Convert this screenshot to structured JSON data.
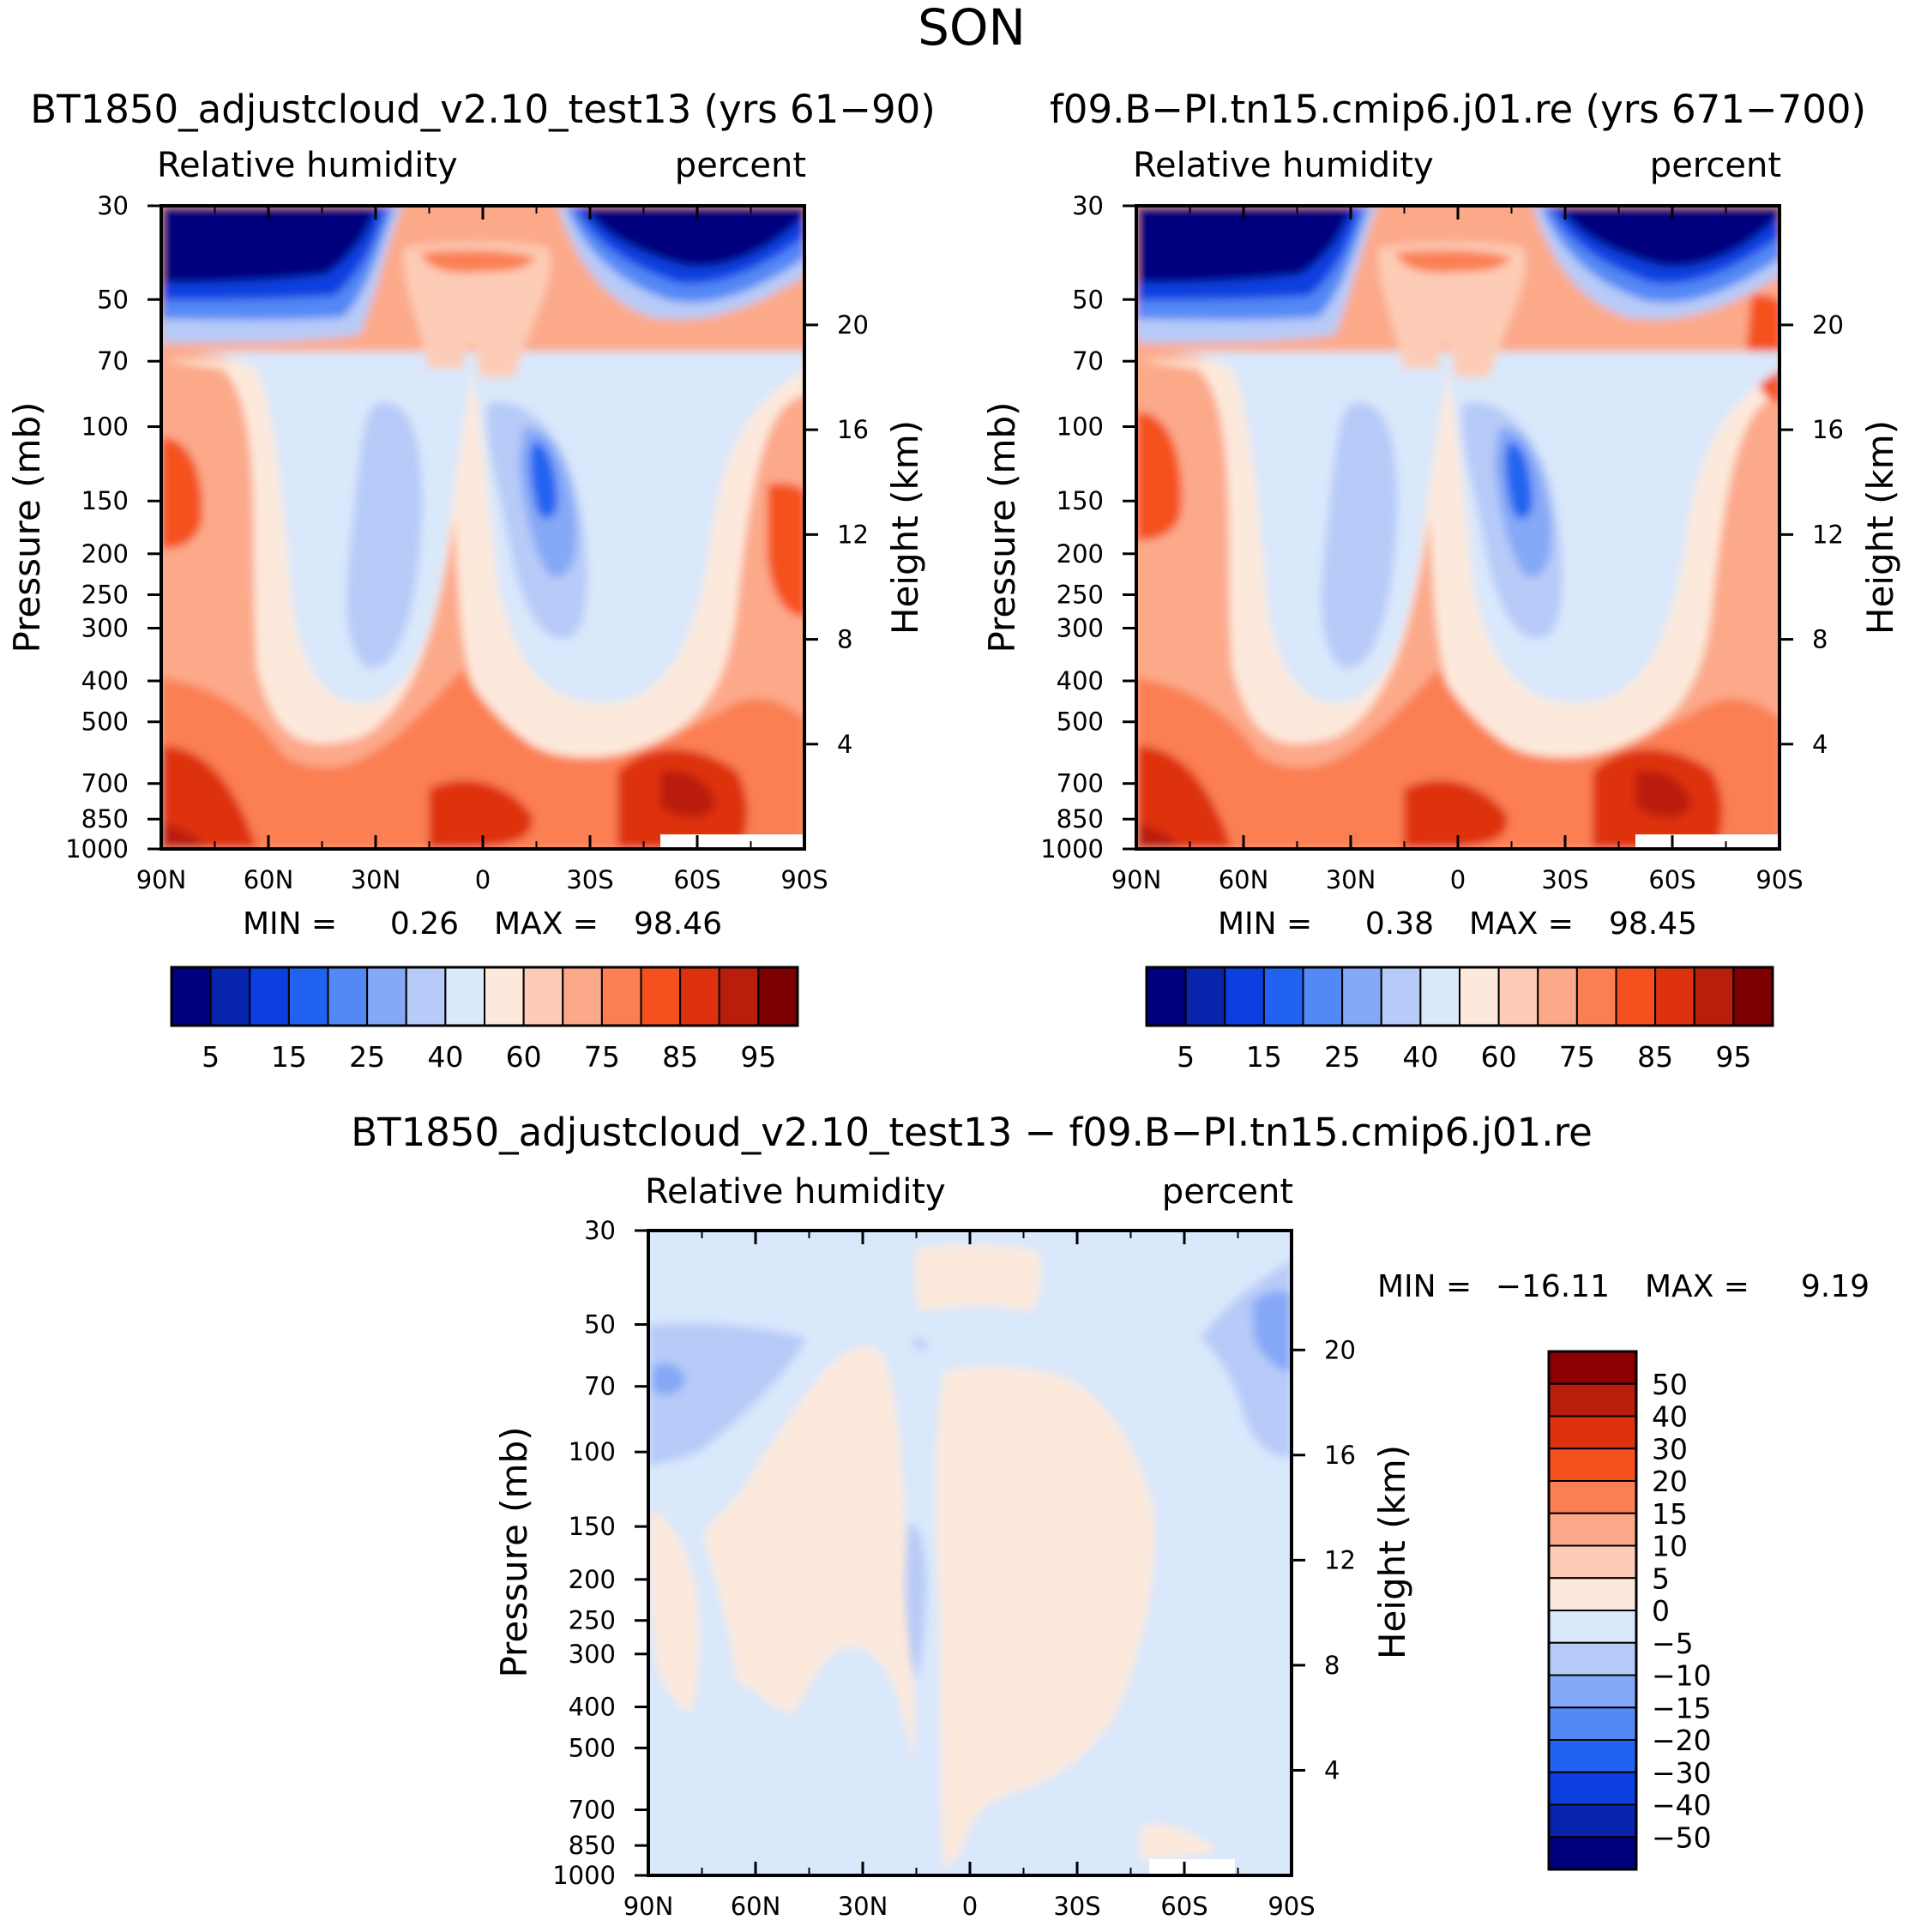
{
  "page_title": "SON",
  "colors": {
    "seq": [
      "#00007f",
      "#0824ad",
      "#0c3fe0",
      "#2163f0",
      "#5388f5",
      "#85a8f7",
      "#b7cbf8",
      "#d9e8fb",
      "#fde9dc",
      "#fdccb6",
      "#fca98a",
      "#fb7f53",
      "#f5511f",
      "#de320f",
      "#b91d0c",
      "#7d0000"
    ],
    "div": [
      "#00007f",
      "#0824ad",
      "#0c3fe0",
      "#2163f0",
      "#5388f5",
      "#85a8f7",
      "#b7cbf8",
      "#d9e8fb",
      "#fde9dc",
      "#fdccb6",
      "#fca98a",
      "#fb7f53",
      "#f5511f",
      "#de320f",
      "#b91d0c",
      "#8b0000"
    ]
  },
  "chart_data": [
    {
      "type": "heatmap",
      "title": "BT1850_adjustcloud_v2.10_test13 (yrs 61-90)",
      "left_string": "Relative humidity",
      "right_string": "percent",
      "xlabel": "",
      "ylabel": "Pressure (mb)",
      "y2label": "Height (km)",
      "x_ticks": [
        "90N",
        "60N",
        "30N",
        "0",
        "30S",
        "60S",
        "90S"
      ],
      "y_ticks": [
        "30",
        "50",
        "70",
        "100",
        "150",
        "200",
        "250",
        "300",
        "400",
        "500",
        "700",
        "850",
        "1000"
      ],
      "y2_ticks": [
        "20",
        "16",
        "12",
        "8",
        "4"
      ],
      "min_label": "MIN =",
      "min_value": "0.26",
      "max_label": "MAX =",
      "max_value": "98.46",
      "colorbar_labels": [
        "5",
        "15",
        "25",
        "40",
        "60",
        "75",
        "85",
        "95"
      ],
      "levels": [
        5,
        10,
        15,
        20,
        25,
        30,
        40,
        50,
        60,
        70,
        75,
        80,
        85,
        90,
        95
      ]
    },
    {
      "type": "heatmap",
      "title": "f09.B-PI.tn15.cmip6.j01.re (yrs 671-700)",
      "left_string": "Relative humidity",
      "right_string": "percent",
      "xlabel": "",
      "ylabel": "Pressure (mb)",
      "y2label": "Height (km)",
      "x_ticks": [
        "90N",
        "60N",
        "30N",
        "0",
        "30S",
        "60S",
        "90S"
      ],
      "y_ticks": [
        "30",
        "50",
        "70",
        "100",
        "150",
        "200",
        "250",
        "300",
        "400",
        "500",
        "700",
        "850",
        "1000"
      ],
      "y2_ticks": [
        "20",
        "16",
        "12",
        "8",
        "4"
      ],
      "min_label": "MIN =",
      "min_value": "0.38",
      "max_label": "MAX =",
      "max_value": "98.45",
      "colorbar_labels": [
        "5",
        "15",
        "25",
        "40",
        "60",
        "75",
        "85",
        "95"
      ],
      "levels": [
        5,
        10,
        15,
        20,
        25,
        30,
        40,
        50,
        60,
        70,
        75,
        80,
        85,
        90,
        95
      ]
    },
    {
      "type": "heatmap",
      "title": "BT1850_adjustcloud_v2.10_test13 - f09.B-PI.tn15.cmip6.j01.re",
      "left_string": "Relative humidity",
      "right_string": "percent",
      "xlabel": "",
      "ylabel": "Pressure (mb)",
      "y2label": "Height (km)",
      "x_ticks": [
        "90N",
        "60N",
        "30N",
        "0",
        "30S",
        "60S",
        "90S"
      ],
      "y_ticks": [
        "30",
        "50",
        "70",
        "100",
        "150",
        "200",
        "250",
        "300",
        "400",
        "500",
        "700",
        "850",
        "1000"
      ],
      "y2_ticks": [
        "20",
        "16",
        "12",
        "8",
        "4"
      ],
      "min_label": "MIN =",
      "min_value": "-16.11",
      "max_label": "MAX =",
      "max_value": "9.19",
      "colorbar_labels": [
        "50",
        "40",
        "30",
        "20",
        "15",
        "10",
        "5",
        "0",
        "-5",
        "-10",
        "-15",
        "-20",
        "-30",
        "-40",
        "-50"
      ],
      "levels": [
        -50,
        -40,
        -30,
        -20,
        -15,
        -10,
        -5,
        0,
        5,
        10,
        15,
        20,
        30,
        40,
        50
      ]
    }
  ]
}
